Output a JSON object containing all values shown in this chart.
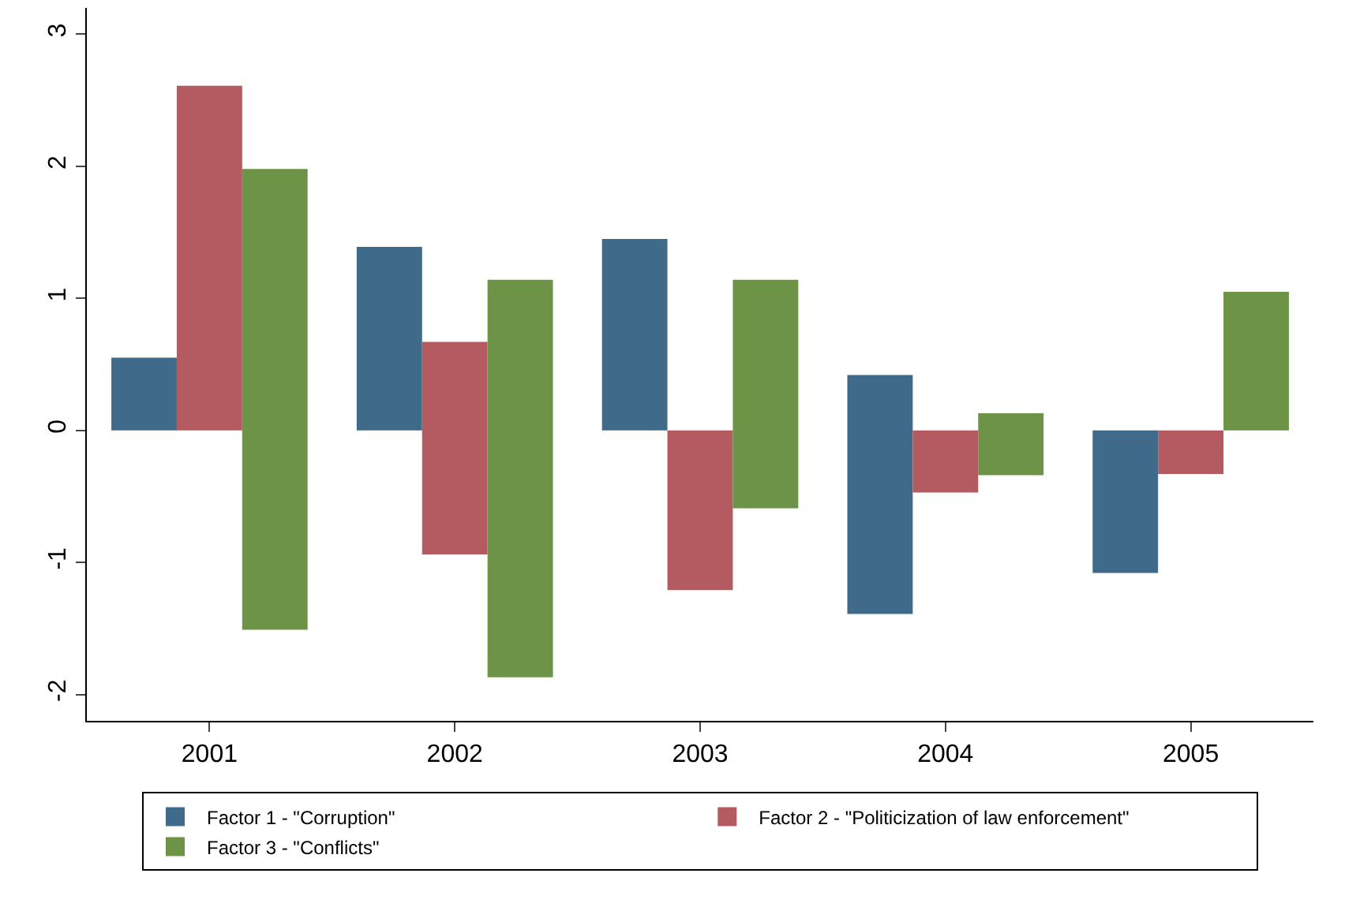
{
  "chart_data": {
    "type": "bar",
    "categories": [
      "2001",
      "2002",
      "2003",
      "2004",
      "2005"
    ],
    "series": [
      {
        "name": "Factor 1 - \"Corruption\"",
        "color": "#3f6a8a",
        "base": [
          0,
          0,
          0,
          -1.39,
          -1.08
        ],
        "values": [
          0.55,
          1.39,
          1.45,
          1.81,
          1.08
        ]
      },
      {
        "name": "Factor 2 - \"Politicization of law enforcement\"",
        "color": "#b35b60",
        "base": [
          0,
          -0.94,
          -1.21,
          -0.47,
          -0.33
        ],
        "values": [
          2.61,
          1.61,
          1.21,
          0.47,
          0.33
        ]
      },
      {
        "name": "Factor 3 - \"Conflicts\"",
        "color": "#6d9446",
        "base": [
          -1.51,
          -1.87,
          -0.59,
          -0.34,
          0
        ],
        "values": [
          3.49,
          3.01,
          1.73,
          0.47,
          1.05
        ]
      }
    ],
    "ylim": [
      -2.2,
      3.2
    ],
    "yticks": [
      -2,
      -1,
      0,
      1,
      2,
      3
    ],
    "grid": false,
    "legend": "bottom"
  }
}
